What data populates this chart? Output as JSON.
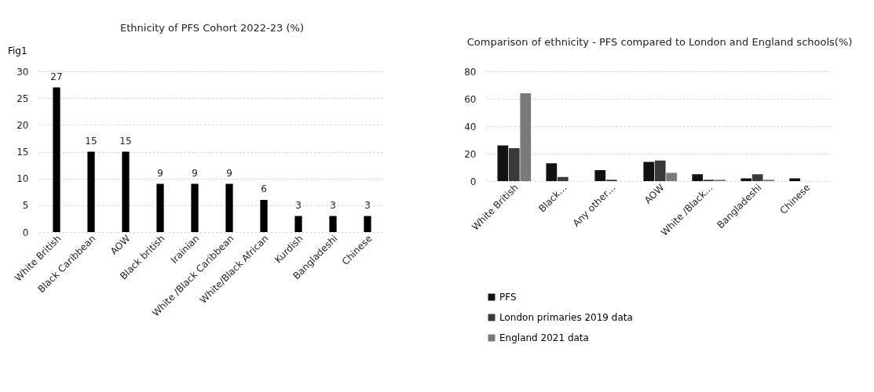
{
  "chart_data": [
    {
      "type": "bar",
      "title": "Ethnicity of PFS Cohort 2022-23 (%)",
      "annotations": [
        "Fig1"
      ],
      "categories": [
        "White British",
        "Black Caribbean",
        "AOW",
        "Black british",
        "Irainian",
        "White /Black Caribbean",
        "White/Black African",
        "Kurdish",
        "Bangladeshi",
        "Chinese"
      ],
      "values": [
        27,
        15,
        15,
        9,
        9,
        9,
        6,
        3,
        3,
        3
      ],
      "color": "#000000",
      "ylim": [
        0,
        30
      ],
      "yticks": [
        0,
        5,
        10,
        15,
        20,
        25,
        30
      ],
      "data_labels": true,
      "grid": "y",
      "legend": false
    },
    {
      "type": "bar",
      "title": "Comparison of ethnicity - PFS compared to London and England schools(%)",
      "categories": [
        "White British",
        "Black…",
        "Any other…",
        "AOW",
        "White /Black…",
        "Bangladeshi",
        "Chinese"
      ],
      "series": [
        {
          "name": "PFS",
          "color": "#111111",
          "values": [
            26,
            13,
            8,
            14,
            5,
            2,
            2
          ]
        },
        {
          "name": "London primaries 2019 data",
          "color": "#3a3a3a",
          "values": [
            24,
            3,
            1,
            15,
            1,
            5,
            null
          ]
        },
        {
          "name": "England 2021 data",
          "color": "#7a7a7a",
          "values": [
            64,
            null,
            null,
            6,
            1,
            1,
            null
          ]
        }
      ],
      "ylim": [
        0,
        80
      ],
      "yticks": [
        0,
        20,
        40,
        60,
        80
      ],
      "grid": "y",
      "legend": "bottom"
    }
  ]
}
